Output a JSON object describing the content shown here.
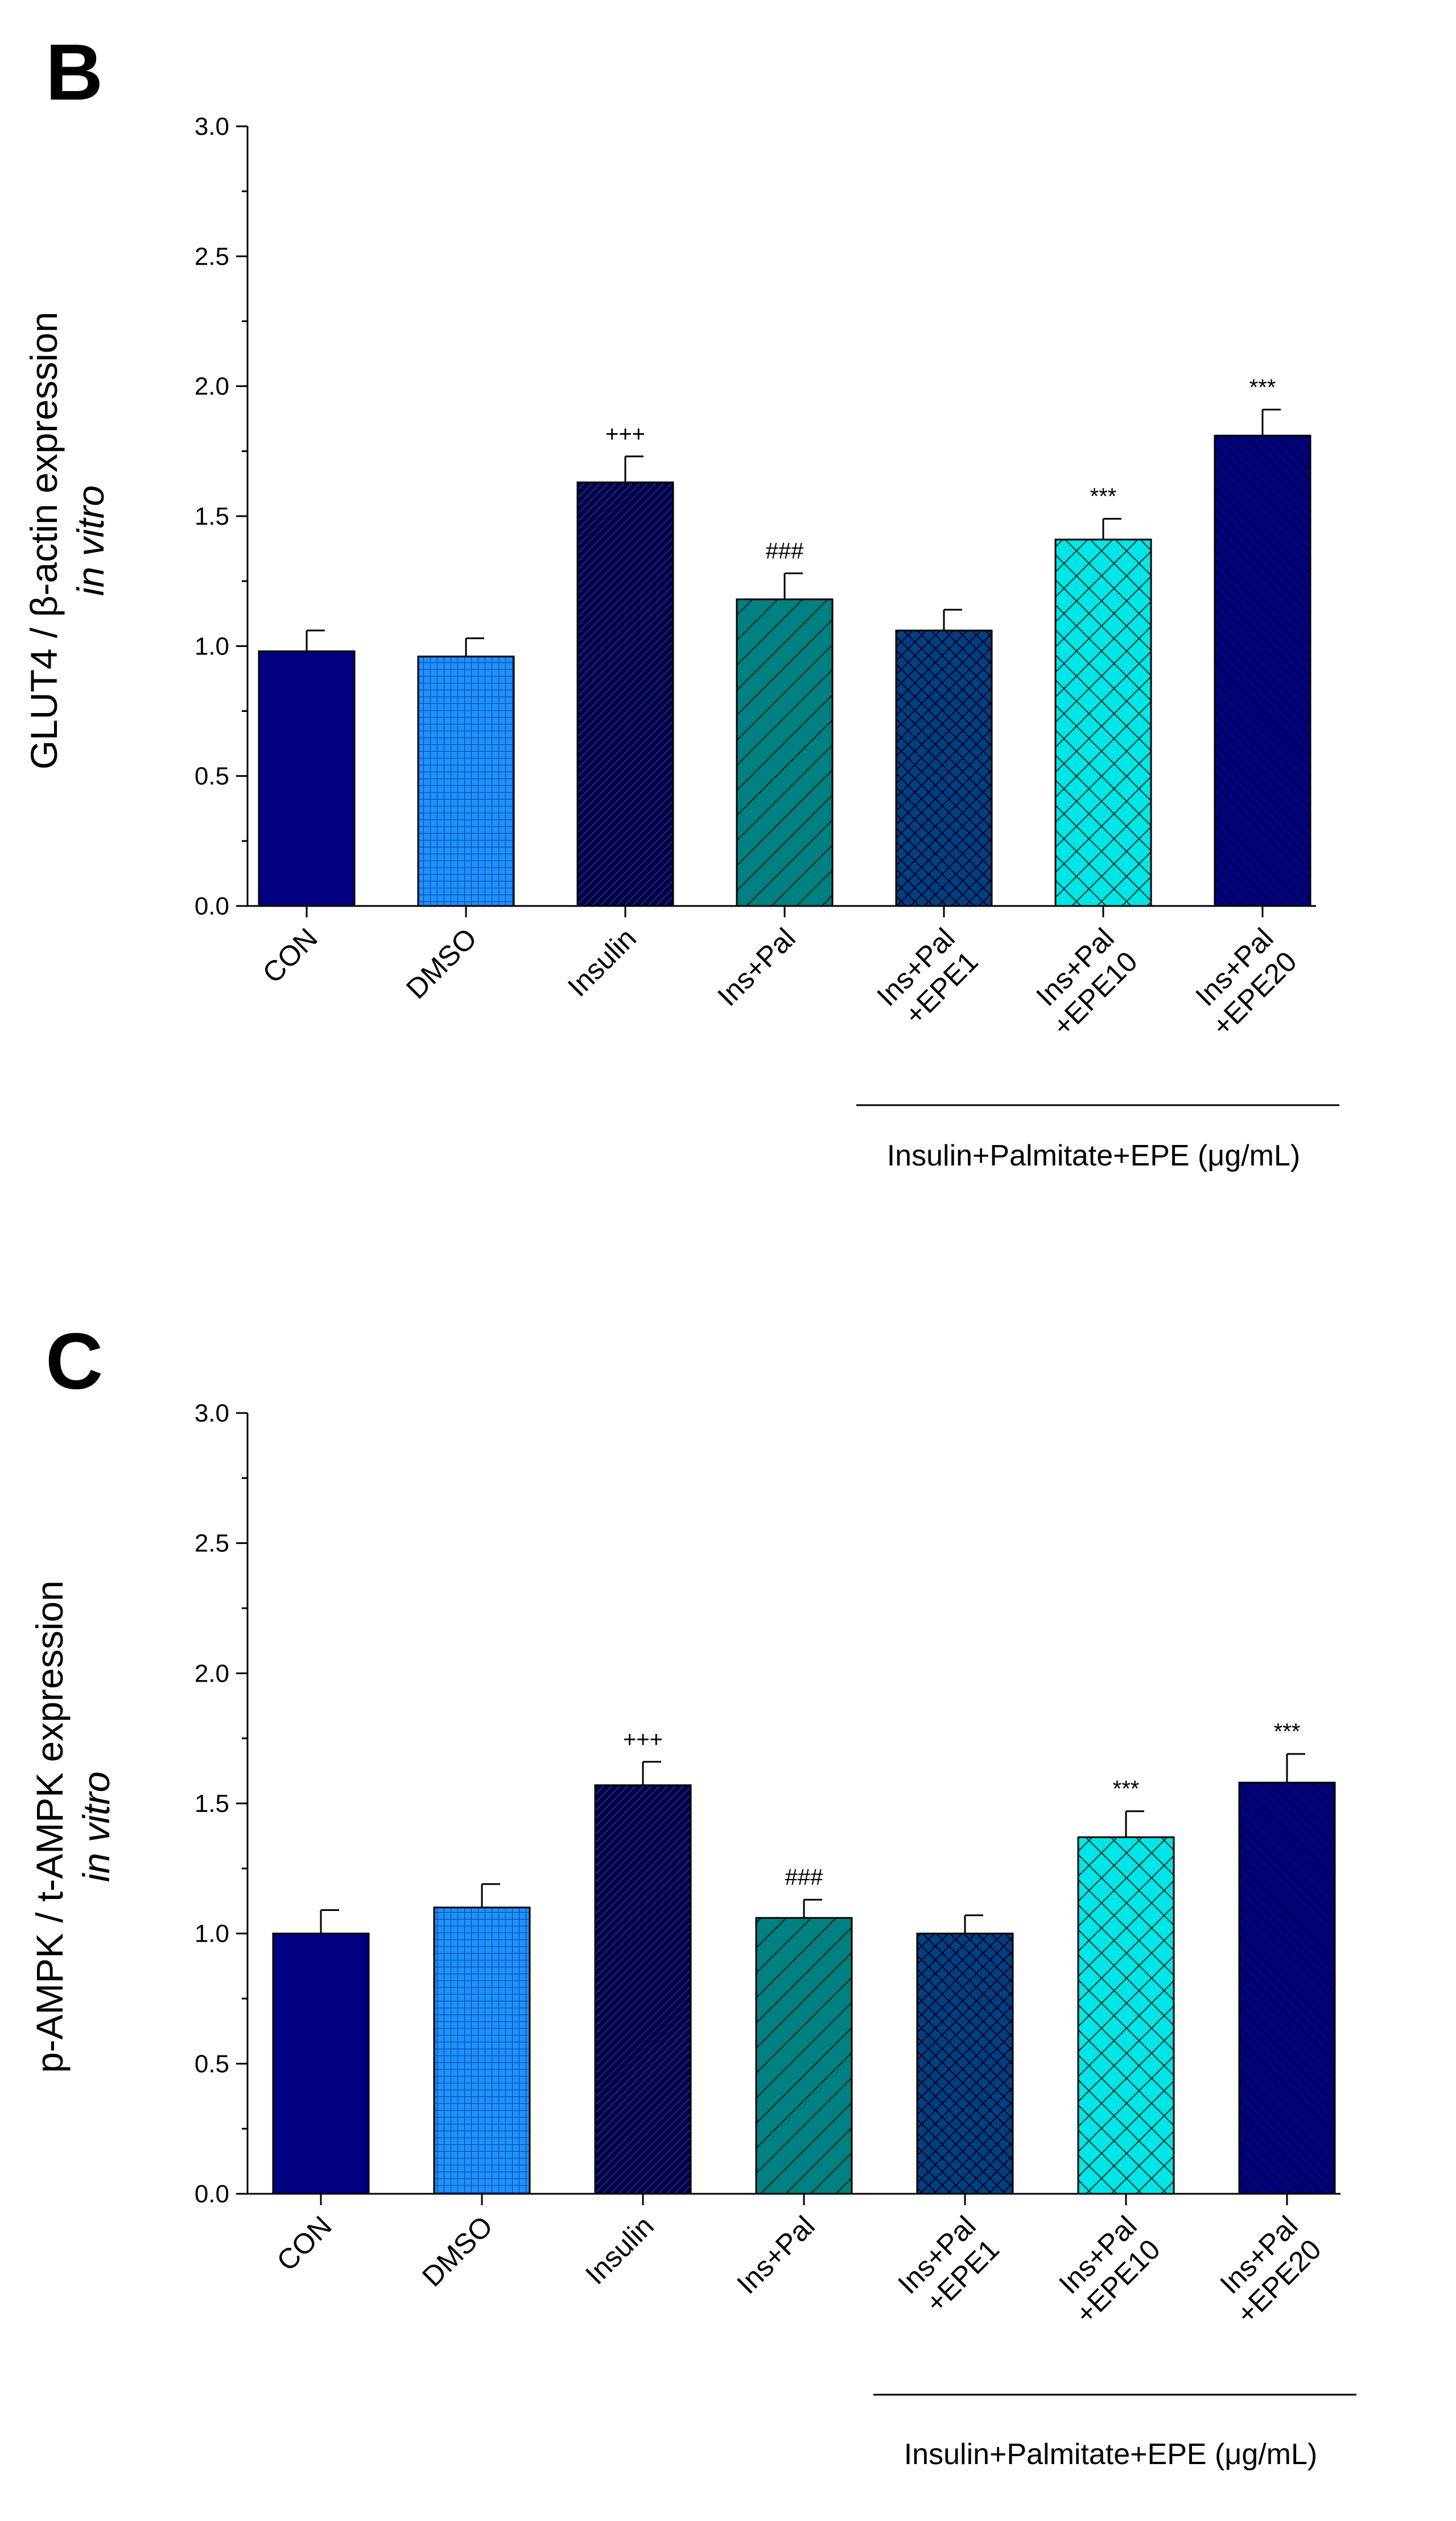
{
  "panels": [
    {
      "letter": "B",
      "ylabel_line1": "GLUT4 / β-actin expression",
      "ylabel_line2": "in vitro",
      "group_label": "Insulin+Palmitate+EPE (μg/mL)"
    },
    {
      "letter": "C",
      "ylabel_line1": "p-AMPK / t-AMPK expression",
      "ylabel_line2": "in vitro",
      "group_label": "Insulin+Palmitate+EPE (μg/mL)"
    }
  ],
  "styles": [
    {
      "fill": "#000080",
      "pattern": "none"
    },
    {
      "fill": "#1e90ff",
      "pattern": "grid"
    },
    {
      "fill": "#00003f",
      "pattern": "diag-dense"
    },
    {
      "fill": "#008080",
      "pattern": "diag-wide"
    },
    {
      "fill": "#003f80",
      "pattern": "cross"
    },
    {
      "fill": "#00e5e5",
      "pattern": "cross-wide"
    },
    {
      "fill": "#000080",
      "pattern": "back-diag"
    }
  ],
  "chart_data": [
    {
      "type": "bar",
      "title": "",
      "panel": "B",
      "xlabel": "",
      "ylabel": "GLUT4 / β-actin expression in vitro",
      "ylim": [
        0,
        3.0
      ],
      "yticks": [
        "0.0",
        "0.5",
        "1.0",
        "1.5",
        "2.0",
        "2.5",
        "3.0"
      ],
      "categories": [
        [
          "CON"
        ],
        [
          "DMSO"
        ],
        [
          "Insulin"
        ],
        [
          "Ins+Pal"
        ],
        [
          "Ins+Pal",
          "+EPE1"
        ],
        [
          "Ins+Pal",
          "+EPE10"
        ],
        [
          "Ins+Pal",
          "+EPE20"
        ]
      ],
      "values": [
        0.98,
        0.96,
        1.63,
        1.18,
        1.06,
        1.41,
        1.81
      ],
      "errors": [
        0.08,
        0.07,
        0.1,
        0.1,
        0.08,
        0.08,
        0.1
      ],
      "annotations": [
        "",
        "",
        "+++",
        "###",
        "",
        "***",
        "***"
      ]
    },
    {
      "type": "bar",
      "title": "",
      "panel": "C",
      "xlabel": "",
      "ylabel": "p-AMPK / t-AMPK expression in vitro",
      "ylim": [
        0,
        3.0
      ],
      "yticks": [
        "0.0",
        "0.5",
        "1.0",
        "1.5",
        "2.0",
        "2.5",
        "3.0"
      ],
      "categories": [
        [
          "CON"
        ],
        [
          "DMSO"
        ],
        [
          "Insulin"
        ],
        [
          "Ins+Pal"
        ],
        [
          "Ins+Pal",
          "+EPE1"
        ],
        [
          "Ins+Pal",
          "+EPE10"
        ],
        [
          "Ins+Pal",
          "+EPE20"
        ]
      ],
      "values": [
        1.0,
        1.1,
        1.57,
        1.06,
        1.0,
        1.37,
        1.58
      ],
      "errors": [
        0.09,
        0.09,
        0.09,
        0.07,
        0.07,
        0.1,
        0.11
      ],
      "annotations": [
        "",
        "",
        "+++",
        "###",
        "",
        "***",
        "***"
      ]
    }
  ]
}
